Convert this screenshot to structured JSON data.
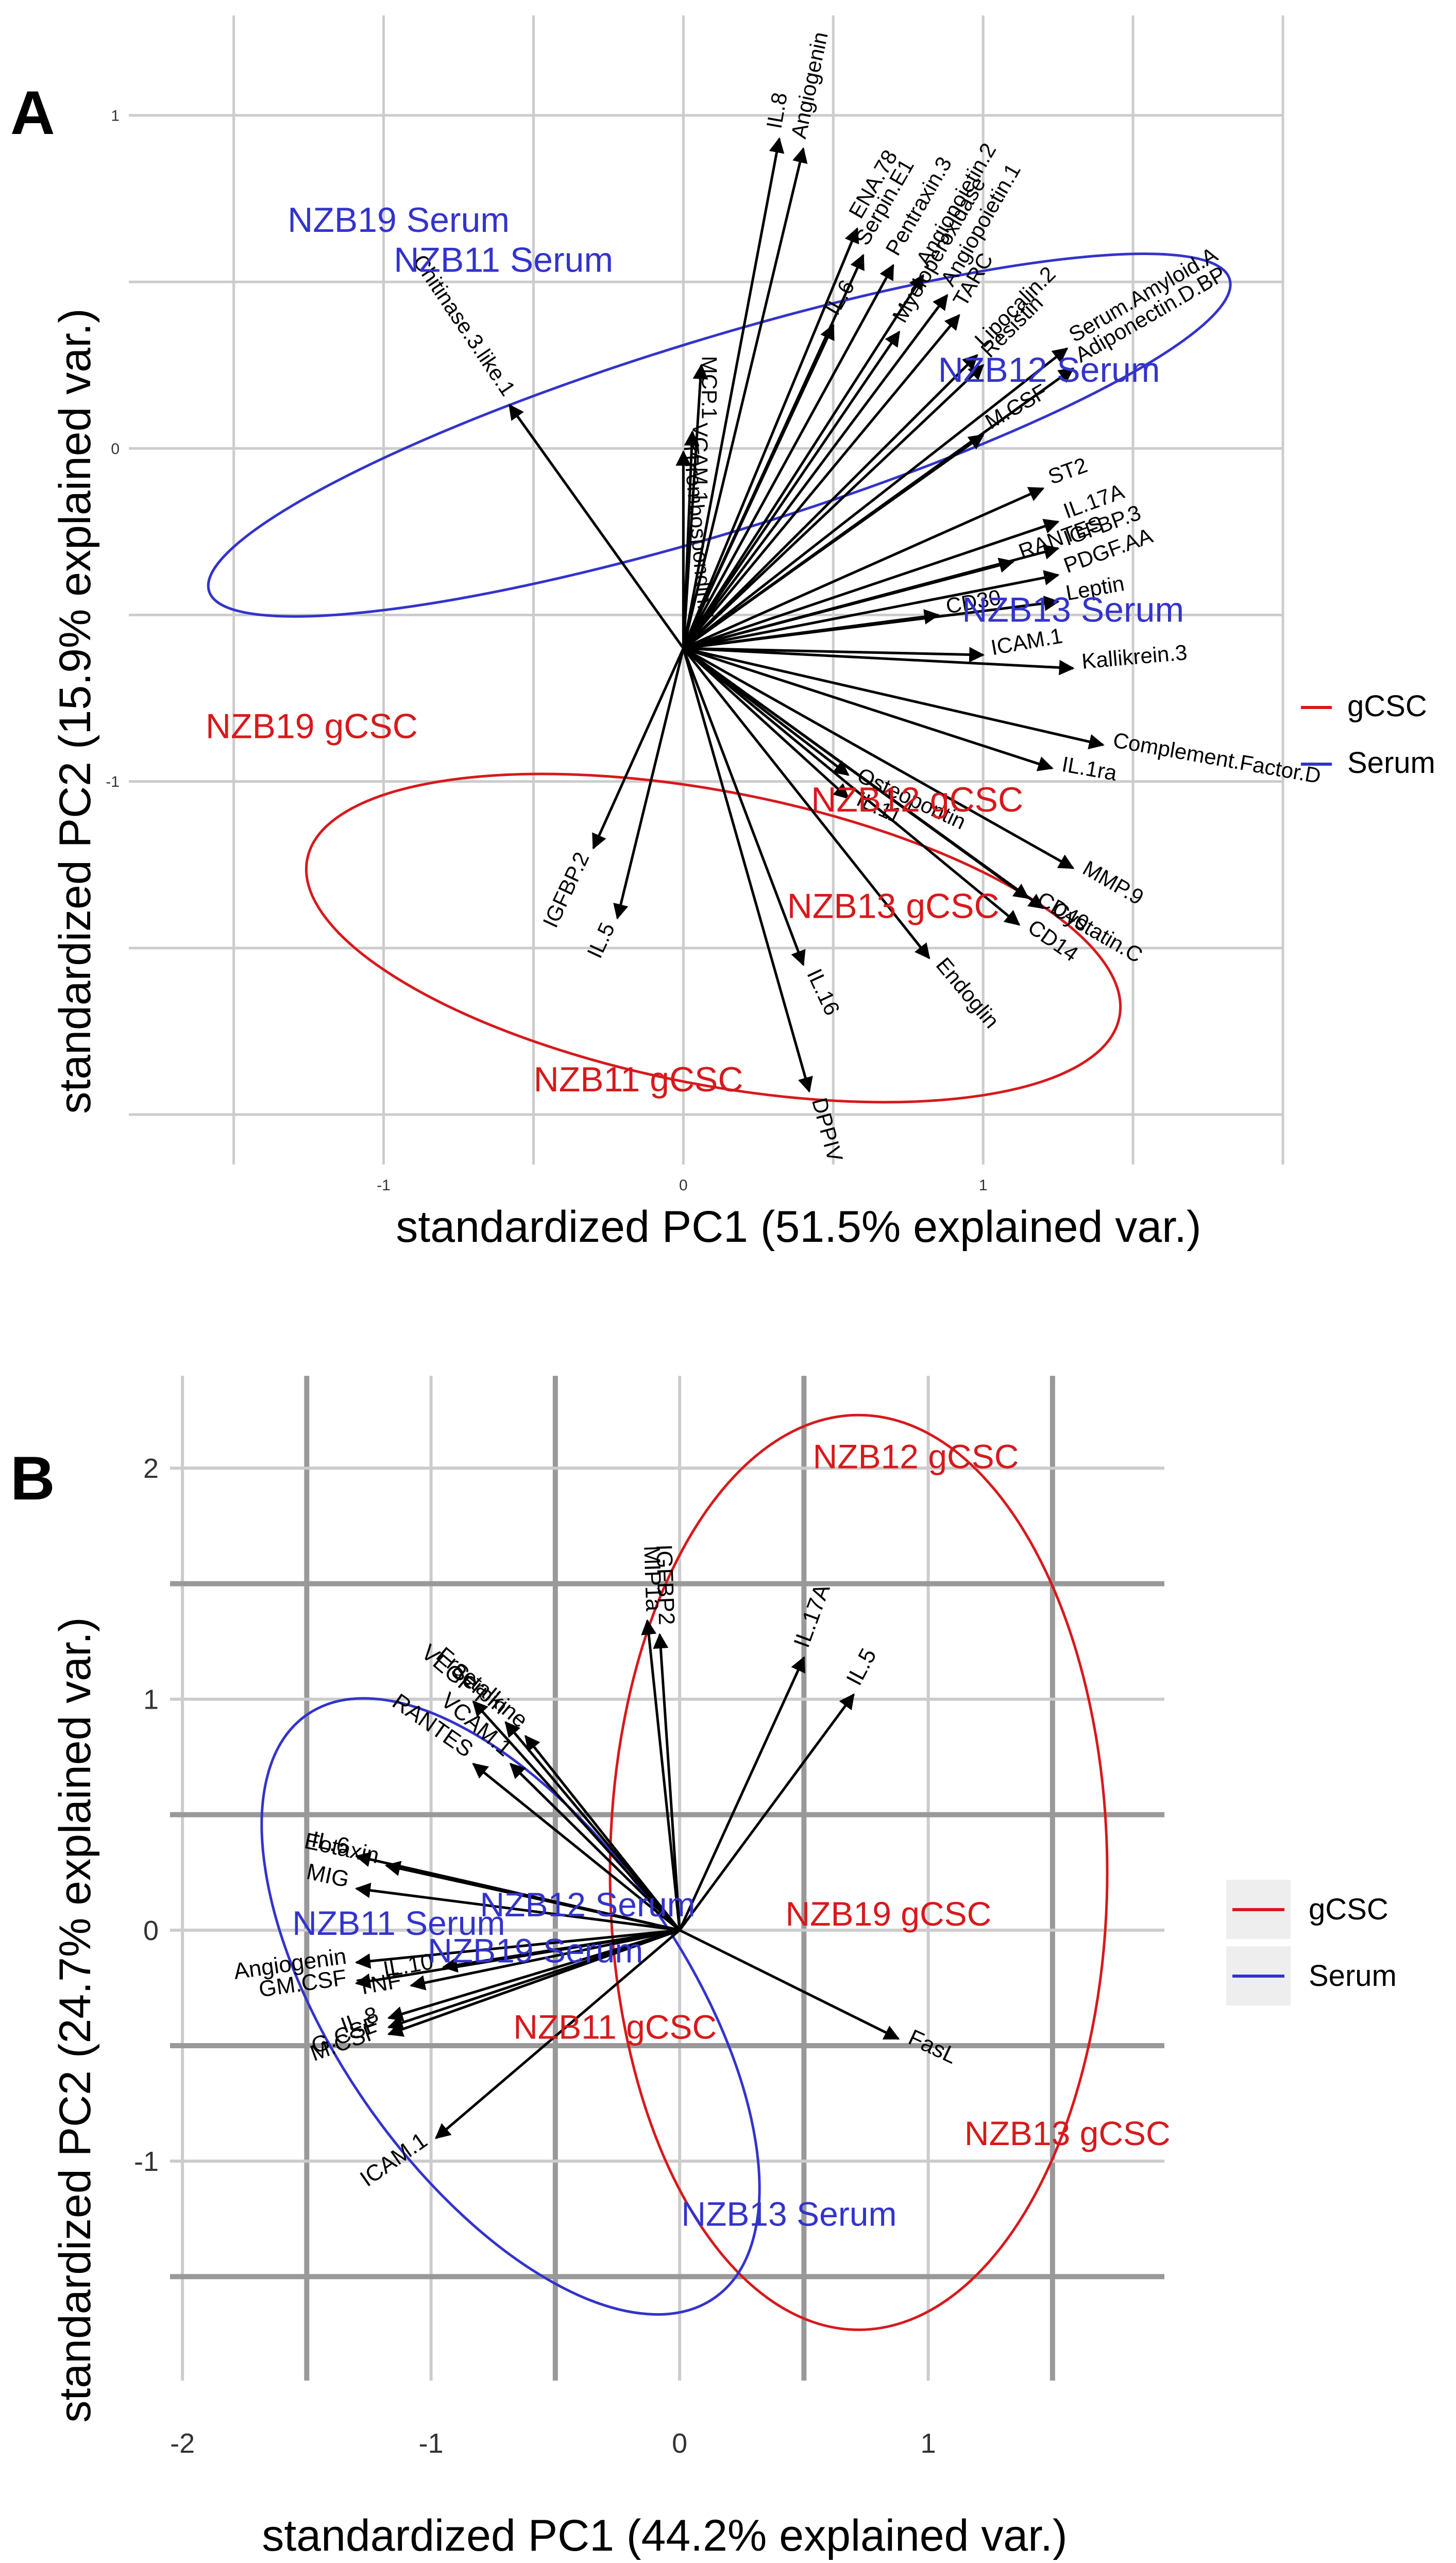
{
  "colors": {
    "gcsc": "#d7191c",
    "serum": "#3333cc",
    "arrow": "#000000",
    "grid_major": "#cccccc",
    "grid_bold": "#999999"
  },
  "chart_data": [
    {
      "panel_label": "A",
      "type": "scatter",
      "subtype": "pca-biplot",
      "xlabel": "standardized PC1 (51.5% explained var.)",
      "ylabel": "standardized PC2 (15.9% explained var.)",
      "xlim": [
        -1.85,
        2.0
      ],
      "ylim": [
        -2.15,
        1.3
      ],
      "xticks": [
        -1,
        0,
        1
      ],
      "xtick_labels": [
        "-1",
        "0",
        "1"
      ],
      "yticks": [
        -1,
        0,
        1
      ],
      "ytick_labels": [
        "-1",
        "0",
        "1"
      ],
      "legend": [
        {
          "name": "gCSC",
          "color": "#d7191c"
        },
        {
          "name": "Serum",
          "color": "#3333cc"
        }
      ],
      "legend_position": "right",
      "samples": [
        {
          "label": "NZB19 Serum",
          "group": "Serum",
          "x": -0.95,
          "y": 0.65
        },
        {
          "label": "NZB11 Serum",
          "group": "Serum",
          "x": -0.6,
          "y": 0.53
        },
        {
          "label": "NZB12 Serum",
          "group": "Serum",
          "x": 1.22,
          "y": 0.2
        },
        {
          "label": "NZB13 Serum",
          "group": "Serum",
          "x": 1.3,
          "y": -0.52
        },
        {
          "label": "NZB19 gCSC",
          "group": "gCSC",
          "x": -1.24,
          "y": -0.87
        },
        {
          "label": "NZB13 gCSC",
          "group": "gCSC",
          "x": 0.7,
          "y": -1.41
        },
        {
          "label": "NZB11 gCSC",
          "group": "gCSC",
          "x": -0.15,
          "y": -1.93
        },
        {
          "label": "NZB12 gCSC",
          "group": "gCSC",
          "x": 0.78,
          "y": -1.09
        }
      ],
      "ellipses": [
        {
          "group": "Serum",
          "cx": 0.12,
          "cy": 0.04,
          "rx": 1.78,
          "ry": 0.29,
          "angle_deg": -17
        },
        {
          "group": "gCSC",
          "cx": 0.1,
          "cy": -1.47,
          "rx": 1.38,
          "ry": 0.44,
          "angle_deg": 11
        }
      ],
      "arrow_origin": [
        0.0,
        -0.6
      ],
      "variables": [
        {
          "name": "Thrombospondin.1",
          "x": 0.0,
          "y": -0.01,
          "angle": 85
        },
        {
          "name": "MCP.1",
          "x": 0.06,
          "y": 0.25,
          "angle": 90
        },
        {
          "name": "VCAM.1",
          "x": 0.03,
          "y": 0.05,
          "angle": 90
        },
        {
          "name": "Chitinase.3.like.1",
          "x": -0.58,
          "y": 0.13,
          "angle": 56
        },
        {
          "name": "IL.8",
          "x": 0.32,
          "y": 0.93,
          "angle": -80
        },
        {
          "name": "Angiogenin",
          "x": 0.4,
          "y": 0.9,
          "angle": -78
        },
        {
          "name": "ENA.78",
          "x": 0.58,
          "y": 0.66,
          "angle": -60
        },
        {
          "name": "Serpin.E1",
          "x": 0.6,
          "y": 0.58,
          "angle": -60
        },
        {
          "name": "Pentraxin.3",
          "x": 0.7,
          "y": 0.55,
          "angle": -60
        },
        {
          "name": "Angiopoietin.2",
          "x": 0.8,
          "y": 0.52,
          "angle": -60
        },
        {
          "name": "Angiopoietin.1",
          "x": 0.88,
          "y": 0.46,
          "angle": -60
        },
        {
          "name": "Myeloperoxidase",
          "x": 0.72,
          "y": 0.35,
          "angle": -60
        },
        {
          "name": "TARC",
          "x": 0.92,
          "y": 0.4,
          "angle": -60
        },
        {
          "name": "IL.6",
          "x": 0.5,
          "y": 0.37,
          "angle": -60
        },
        {
          "name": "Lipocalin.2",
          "x": 0.98,
          "y": 0.28,
          "angle": -45
        },
        {
          "name": "Resistin",
          "x": 1.0,
          "y": 0.25,
          "angle": -45
        },
        {
          "name": "Serum.Amyloid.A",
          "x": 1.28,
          "y": 0.3,
          "angle": -30
        },
        {
          "name": "Adiponectin.D.BP",
          "x": 1.3,
          "y": 0.24,
          "angle": -30
        },
        {
          "name": "M.CSF",
          "x": 1.0,
          "y": 0.04,
          "angle": -30
        },
        {
          "name": "ST2",
          "x": 1.2,
          "y": -0.12,
          "angle": -20
        },
        {
          "name": "IL.17A",
          "x": 1.25,
          "y": -0.22,
          "angle": -20
        },
        {
          "name": "IGFBP.3",
          "x": 1.25,
          "y": -0.3,
          "angle": -20
        },
        {
          "name": "PDGF.AA",
          "x": 1.25,
          "y": -0.38,
          "angle": -20
        },
        {
          "name": "RANTES",
          "x": 1.1,
          "y": -0.34,
          "angle": -20
        },
        {
          "name": "Leptin",
          "x": 1.25,
          "y": -0.46,
          "angle": -10
        },
        {
          "name": "ICAM.1",
          "x": 1.0,
          "y": -0.62,
          "angle": -10
        },
        {
          "name": "CD30",
          "x": 0.85,
          "y": -0.5,
          "angle": -10
        },
        {
          "name": "Kallikrein.3",
          "x": 1.3,
          "y": -0.66,
          "angle": -5
        },
        {
          "name": "Complement.Factor.D",
          "x": 1.4,
          "y": -0.89,
          "angle": 10
        },
        {
          "name": "IL.1ra",
          "x": 1.23,
          "y": -0.96,
          "angle": 10
        },
        {
          "name": "MMP.9",
          "x": 1.3,
          "y": -1.26,
          "angle": 30
        },
        {
          "name": "Cystatin.C",
          "x": 1.2,
          "y": -1.38,
          "angle": 30
        },
        {
          "name": "CD40",
          "x": 1.15,
          "y": -1.35,
          "angle": 30
        },
        {
          "name": "CD14",
          "x": 1.12,
          "y": -1.43,
          "angle": 35
        },
        {
          "name": "IL.11",
          "x": 0.55,
          "y": -1.05,
          "angle": 25
        },
        {
          "name": "Osteopontin",
          "x": 0.55,
          "y": -0.98,
          "angle": 25
        },
        {
          "name": "Endoglin",
          "x": 0.82,
          "y": -1.53,
          "angle": 50
        },
        {
          "name": "IL.16",
          "x": 0.4,
          "y": -1.55,
          "angle": 65
        },
        {
          "name": "DPPIV",
          "x": 0.42,
          "y": -1.93,
          "angle": 75
        },
        {
          "name": "IGFBP.2",
          "x": -0.3,
          "y": -1.2,
          "angle": -65
        },
        {
          "name": "IL.5",
          "x": -0.22,
          "y": -1.41,
          "angle": -65
        }
      ]
    },
    {
      "panel_label": "B",
      "type": "scatter",
      "subtype": "pca-biplot",
      "xlabel": "standardized PC1 (44.2% explained var.)",
      "ylabel": "standardized PC2 (24.7% explained var.)",
      "xlim": [
        -2.05,
        1.95
      ],
      "ylim": [
        -1.95,
        2.4
      ],
      "xticks": [
        -2,
        -1,
        0,
        1
      ],
      "xtick_labels": [
        "-2",
        "-1",
        "0",
        "1"
      ],
      "yticks": [
        -1,
        0,
        1,
        2
      ],
      "ytick_labels": [
        "-1",
        "0",
        "1",
        "2"
      ],
      "legend": [
        {
          "name": "gCSC",
          "color": "#d7191c"
        },
        {
          "name": "Serum",
          "color": "#3333cc"
        }
      ],
      "legend_position": "right",
      "samples": [
        {
          "label": "NZB12 gCSC",
          "group": "gCSC",
          "x": 0.95,
          "y": 2.0
        },
        {
          "label": "NZB19 gCSC",
          "group": "gCSC",
          "x": 0.84,
          "y": 0.02
        },
        {
          "label": "NZB11 gCSC",
          "group": "gCSC",
          "x": -0.26,
          "y": -0.47
        },
        {
          "label": "NZB13 gCSC",
          "group": "gCSC",
          "x": 1.56,
          "y": -0.93
        },
        {
          "label": "NZB11 Serum",
          "group": "Serum",
          "x": -1.13,
          "y": -0.02
        },
        {
          "label": "NZB12 Serum",
          "group": "Serum",
          "x": -0.37,
          "y": 0.06
        },
        {
          "label": "NZB19 Serum",
          "group": "Serum",
          "x": -0.58,
          "y": -0.14
        },
        {
          "label": "NZB13 Serum",
          "group": "Serum",
          "x": 0.44,
          "y": -1.28
        }
      ],
      "ellipses": [
        {
          "group": "gCSC",
          "cx": 0.72,
          "cy": 0.25,
          "rx": 1.0,
          "ry": 1.98,
          "angle_deg": 0
        },
        {
          "group": "Serum",
          "cx": -0.68,
          "cy": -0.33,
          "rx": 0.7,
          "ry": 1.54,
          "angle_deg": -35
        }
      ],
      "arrow_origin": [
        0.0,
        0.0
      ],
      "variables": [
        {
          "name": "MIP1a",
          "x": -0.13,
          "y": 1.34,
          "angle": 88
        },
        {
          "name": "IGFBP2",
          "x": -0.08,
          "y": 1.28,
          "angle": 88
        },
        {
          "name": "IL.17A",
          "x": 0.5,
          "y": 1.18,
          "angle": -70
        },
        {
          "name": "IL.5",
          "x": 0.7,
          "y": 1.02,
          "angle": -62
        },
        {
          "name": "VEGF",
          "x": -0.83,
          "y": 0.99,
          "angle": 40
        },
        {
          "name": "Fractalkine",
          "x": -0.62,
          "y": 0.84,
          "angle": 40
        },
        {
          "name": "Serpin",
          "x": -0.7,
          "y": 0.9,
          "angle": 40
        },
        {
          "name": "VCAM.1",
          "x": -0.68,
          "y": 0.72,
          "angle": 40
        },
        {
          "name": "RANTES",
          "x": -0.83,
          "y": 0.72,
          "angle": 35
        },
        {
          "name": "IL.6",
          "x": -1.3,
          "y": 0.32,
          "angle": 12
        },
        {
          "name": "Eotaxin",
          "x": -1.18,
          "y": 0.28,
          "angle": 12
        },
        {
          "name": "MIG",
          "x": -1.3,
          "y": 0.18,
          "angle": 12
        },
        {
          "name": "Angiogenin",
          "x": -1.3,
          "y": -0.14,
          "angle": -8
        },
        {
          "name": "GM.CSF",
          "x": -1.3,
          "y": -0.23,
          "angle": -8
        },
        {
          "name": "TNF",
          "x": -1.08,
          "y": -0.24,
          "angle": -10
        },
        {
          "name": "IL.10",
          "x": -0.95,
          "y": -0.16,
          "angle": -10
        },
        {
          "name": "IL.8",
          "x": -1.17,
          "y": -0.38,
          "angle": -20
        },
        {
          "name": "G.CSF",
          "x": -1.17,
          "y": -0.42,
          "angle": -20
        },
        {
          "name": "M.CSF",
          "x": -1.17,
          "y": -0.45,
          "angle": -20
        },
        {
          "name": "ICAM.1",
          "x": -0.98,
          "y": -0.9,
          "angle": -35
        },
        {
          "name": "FasL",
          "x": 0.88,
          "y": -0.47,
          "angle": 25
        }
      ]
    }
  ]
}
